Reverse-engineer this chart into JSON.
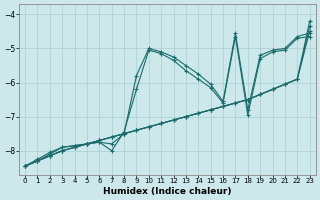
{
  "xlabel": "Humidex (Indice chaleur)",
  "bg_color": "#cce8ea",
  "line_color": "#1a6b6b",
  "xlim": [
    -0.5,
    23.5
  ],
  "ylim": [
    -8.7,
    -3.7
  ],
  "xticks": [
    0,
    1,
    2,
    3,
    4,
    5,
    6,
    7,
    8,
    9,
    10,
    11,
    12,
    13,
    14,
    15,
    16,
    17,
    18,
    19,
    20,
    21,
    22,
    23
  ],
  "yticks": [
    -8,
    -7,
    -6,
    -5,
    -4
  ],
  "series": [
    {
      "x": [
        0,
        1,
        2,
        3,
        4,
        5,
        6,
        7,
        8,
        9,
        10,
        11,
        12,
        13,
        14,
        15,
        16,
        17,
        18,
        19,
        20,
        21,
        22,
        23
      ],
      "y": [
        -8.45,
        -8.3,
        -8.15,
        -8.0,
        -7.9,
        -7.8,
        -7.7,
        -7.6,
        -7.5,
        -7.4,
        -7.3,
        -7.2,
        -7.1,
        -7.0,
        -6.9,
        -6.8,
        -6.7,
        -6.6,
        -6.5,
        -6.35,
        -6.2,
        -6.05,
        -5.9,
        -4.2
      ],
      "marker": "+",
      "markersize": 3.5,
      "linewidth": 0.8
    },
    {
      "x": [
        0,
        1,
        2,
        3,
        4,
        5,
        6,
        7,
        8,
        9,
        10,
        11,
        12,
        13,
        14,
        15,
        16,
        17,
        18,
        19,
        20,
        21,
        22,
        23
      ],
      "y": [
        -8.45,
        -8.3,
        -8.15,
        -8.0,
        -7.9,
        -7.8,
        -7.7,
        -7.6,
        -7.5,
        -7.4,
        -7.3,
        -7.2,
        -7.1,
        -7.0,
        -6.9,
        -6.8,
        -6.7,
        -6.6,
        -6.5,
        -6.35,
        -6.2,
        -6.05,
        -5.9,
        -4.35
      ],
      "marker": "+",
      "markersize": 3.5,
      "linewidth": 0.8
    },
    {
      "x": [
        0,
        1,
        2,
        3,
        4,
        5,
        6,
        7,
        8,
        9,
        10,
        11,
        12,
        13,
        14,
        15,
        16,
        17,
        18,
        19,
        20,
        21,
        22,
        23
      ],
      "y": [
        -8.45,
        -8.3,
        -8.15,
        -8.0,
        -7.9,
        -7.8,
        -7.7,
        -7.6,
        -7.5,
        -7.4,
        -7.3,
        -7.2,
        -7.1,
        -7.0,
        -6.9,
        -6.8,
        -6.7,
        -6.6,
        -6.5,
        -6.35,
        -6.2,
        -6.05,
        -5.9,
        -4.5
      ],
      "marker": "+",
      "markersize": 3.5,
      "linewidth": 0.8
    },
    {
      "x": [
        0,
        1,
        2,
        3,
        4,
        5,
        6,
        7,
        8,
        9,
        10,
        11,
        12,
        13,
        14,
        15,
        16,
        17,
        18,
        19,
        20,
        21,
        22,
        23
      ],
      "y": [
        -8.45,
        -8.3,
        -8.1,
        -7.9,
        -7.85,
        -7.8,
        -7.75,
        -7.8,
        -7.5,
        -5.8,
        -5.0,
        -5.1,
        -5.25,
        -5.5,
        -5.75,
        -6.05,
        -6.55,
        -4.55,
        -6.8,
        -5.2,
        -5.05,
        -5.0,
        -4.65,
        -4.55
      ],
      "marker": "+",
      "markersize": 3.5,
      "linewidth": 0.8
    },
    {
      "x": [
        0,
        1,
        2,
        3,
        4,
        5,
        6,
        7,
        8,
        9,
        10,
        11,
        12,
        13,
        14,
        15,
        16,
        17,
        18,
        19,
        20,
        21,
        22,
        23
      ],
      "y": [
        -8.45,
        -8.25,
        -8.05,
        -7.9,
        -7.85,
        -7.8,
        -7.75,
        -8.0,
        -7.45,
        -6.2,
        -5.05,
        -5.15,
        -5.35,
        -5.65,
        -5.9,
        -6.15,
        -6.6,
        -4.65,
        -6.95,
        -5.3,
        -5.1,
        -5.05,
        -4.7,
        -4.65
      ],
      "marker": "+",
      "markersize": 3.5,
      "linewidth": 0.8
    }
  ]
}
